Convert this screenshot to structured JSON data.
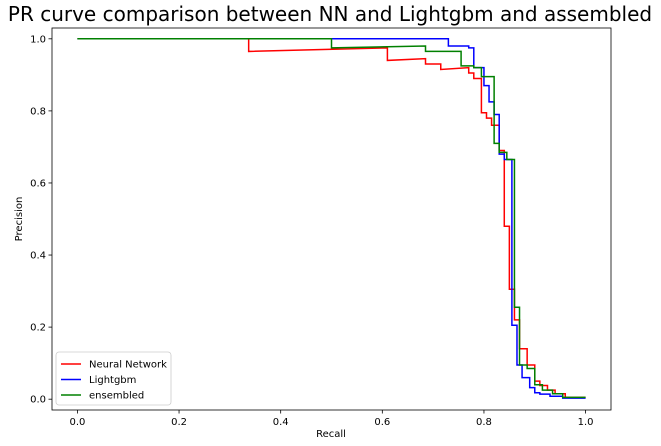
{
  "chart_data": {
    "type": "line",
    "title": "PR curve comparison between NN and Lightgbm and assembled",
    "xlabel": "Recall",
    "ylabel": "Precision",
    "xlim": [
      -0.05,
      1.05
    ],
    "ylim": [
      -0.03,
      1.03
    ],
    "xticks": [
      "0.0",
      "0.2",
      "0.4",
      "0.6",
      "0.8",
      "1.0"
    ],
    "yticks": [
      "0.0",
      "0.2",
      "0.4",
      "0.6",
      "0.8",
      "1.0"
    ],
    "grid": false,
    "legend_position": "lower-left",
    "series": [
      {
        "name": "Neural Network",
        "color": "#ff0000",
        "step": "post",
        "x": [
          0.0,
          0.337,
          0.337,
          0.61,
          0.61,
          0.685,
          0.685,
          0.715,
          0.715,
          0.77,
          0.77,
          0.78,
          0.78,
          0.795,
          0.795,
          0.805,
          0.805,
          0.815,
          0.815,
          0.83,
          0.83,
          0.84,
          0.84,
          0.85,
          0.85,
          0.86,
          0.86,
          0.87,
          0.87,
          0.885,
          0.885,
          0.9,
          0.9,
          0.91,
          0.91,
          0.925,
          0.925,
          0.94,
          0.94,
          0.96,
          0.96,
          1.0
        ],
        "y": [
          1.0,
          1.0,
          0.965,
          0.975,
          0.94,
          0.945,
          0.93,
          0.93,
          0.915,
          0.92,
          0.905,
          0.905,
          0.89,
          0.89,
          0.795,
          0.795,
          0.78,
          0.78,
          0.76,
          0.76,
          0.69,
          0.69,
          0.48,
          0.48,
          0.305,
          0.305,
          0.22,
          0.22,
          0.14,
          0.14,
          0.095,
          0.095,
          0.05,
          0.05,
          0.038,
          0.038,
          0.025,
          0.025,
          0.015,
          0.015,
          0.005,
          0.005
        ]
      },
      {
        "name": "Lightgbm",
        "color": "#0000ff",
        "step": "post",
        "x": [
          0.0,
          0.57,
          0.57,
          0.73,
          0.73,
          0.77,
          0.77,
          0.78,
          0.78,
          0.8,
          0.8,
          0.81,
          0.81,
          0.82,
          0.82,
          0.83,
          0.83,
          0.84,
          0.84,
          0.855,
          0.855,
          0.865,
          0.865,
          0.875,
          0.875,
          0.89,
          0.89,
          0.9,
          0.9,
          0.91,
          0.91,
          0.93,
          0.93,
          0.955,
          0.955,
          1.0
        ],
        "y": [
          1.0,
          1.0,
          1.0,
          1.0,
          0.98,
          0.98,
          0.975,
          0.975,
          0.92,
          0.92,
          0.87,
          0.87,
          0.825,
          0.825,
          0.79,
          0.79,
          0.68,
          0.68,
          0.665,
          0.665,
          0.205,
          0.205,
          0.095,
          0.095,
          0.06,
          0.06,
          0.032,
          0.032,
          0.018,
          0.018,
          0.014,
          0.014,
          0.008,
          0.008,
          0.003,
          0.003
        ]
      },
      {
        "name": "ensembled",
        "color": "#008000",
        "step": "post",
        "x": [
          0.0,
          0.5,
          0.5,
          0.685,
          0.685,
          0.755,
          0.755,
          0.78,
          0.78,
          0.795,
          0.795,
          0.82,
          0.82,
          0.83,
          0.83,
          0.845,
          0.845,
          0.86,
          0.86,
          0.87,
          0.87,
          0.885,
          0.885,
          0.9,
          0.9,
          0.915,
          0.915,
          0.935,
          0.935,
          0.955,
          0.955,
          1.0
        ],
        "y": [
          1.0,
          1.0,
          0.975,
          0.98,
          0.965,
          0.965,
          0.925,
          0.925,
          0.92,
          0.92,
          0.895,
          0.895,
          0.71,
          0.71,
          0.685,
          0.685,
          0.665,
          0.665,
          0.255,
          0.255,
          0.095,
          0.095,
          0.085,
          0.085,
          0.04,
          0.04,
          0.025,
          0.025,
          0.015,
          0.015,
          0.005,
          0.005
        ]
      }
    ]
  }
}
